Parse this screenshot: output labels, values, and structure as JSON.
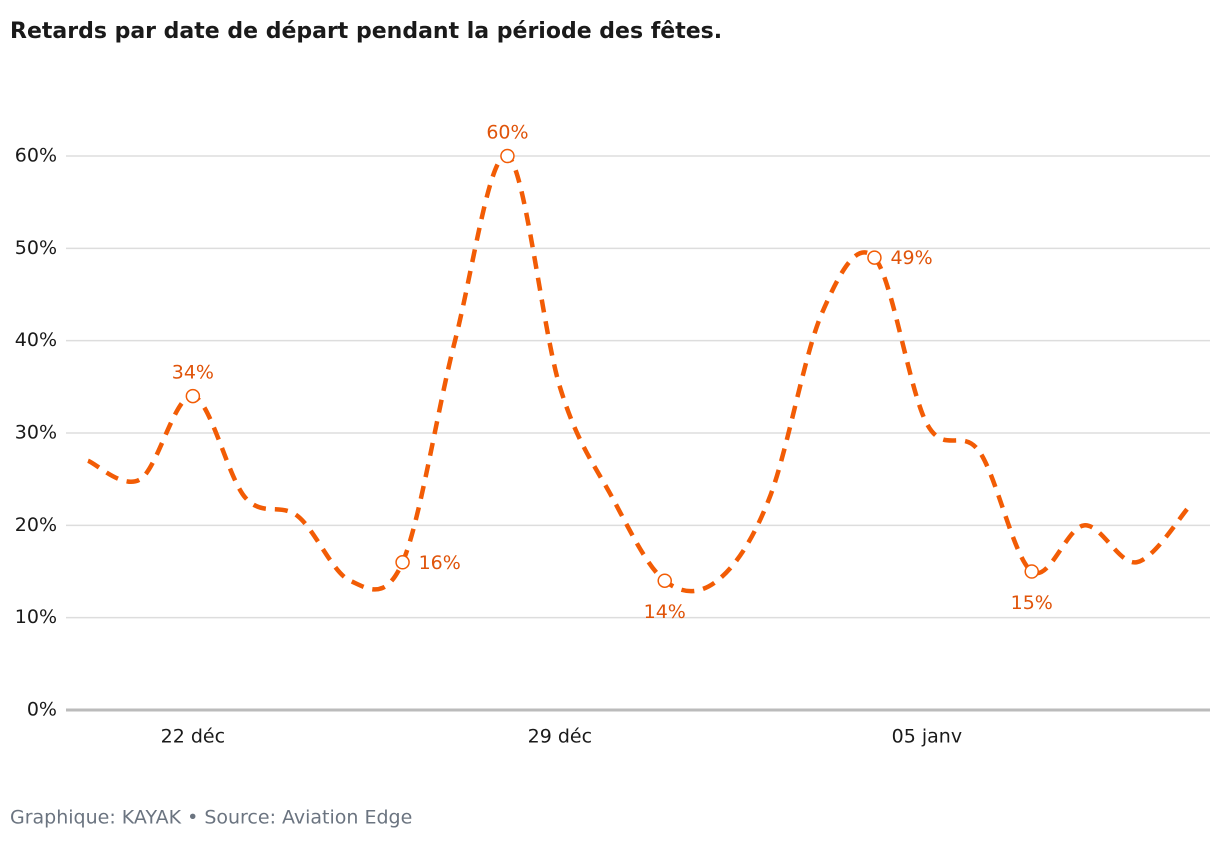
{
  "chart_data": {
    "type": "line",
    "title": "Retards par date de départ pendant la période des fêtes.",
    "source": "Graphique: KAYAK • Source: Aviation Edge",
    "categories": [
      null,
      null,
      "22 déc",
      null,
      null,
      null,
      null,
      null,
      null,
      "29 déc",
      null,
      null,
      null,
      null,
      null,
      null,
      "05 janv",
      null,
      null,
      null,
      null,
      null
    ],
    "series": [
      {
        "color": "#f25c05",
        "values": [
          27,
          25,
          34,
          23,
          21,
          14,
          16,
          40,
          60,
          35,
          23,
          14,
          14,
          23,
          43,
          49,
          31,
          28,
          15,
          20,
          16,
          22
        ],
        "value_labels": [
          null,
          null,
          "34%",
          null,
          null,
          null,
          "16%",
          null,
          "60%",
          null,
          null,
          "14%",
          null,
          null,
          null,
          "49%",
          null,
          null,
          "15%",
          null,
          null,
          null
        ]
      }
    ],
    "ylim": [
      0,
      60
    ],
    "yticks": [
      {
        "value": 0,
        "label": "0%"
      },
      {
        "value": 10,
        "label": "10%"
      },
      {
        "value": 20,
        "label": "20%"
      },
      {
        "value": 30,
        "label": "30%"
      },
      {
        "value": 40,
        "label": "40%"
      },
      {
        "value": 50,
        "label": "50%"
      },
      {
        "value": 60,
        "label": "60%"
      }
    ],
    "grid": true
  }
}
